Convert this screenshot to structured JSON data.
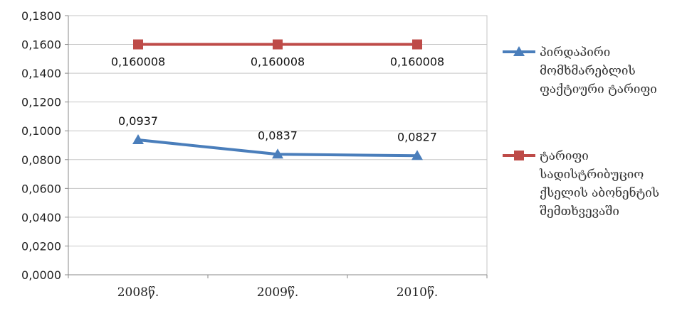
{
  "chart_data": {
    "type": "line",
    "categories": [
      "2008წ.",
      "2009წ.",
      "2010წ."
    ],
    "ylim": [
      0,
      0.18
    ],
    "y_ticks": [
      "0,0000",
      "0,0200",
      "0,0400",
      "0,0600",
      "0,0800",
      "0,1000",
      "0,1200",
      "0,1400",
      "0,1600",
      "0,1800"
    ],
    "grid": true,
    "legend_position": "right",
    "series": [
      {
        "name": "პირდაპირი მომხმარებლის ფაქტიური ტარიფი",
        "legend_lines": [
          "პირდაპირი",
          "მომხმარებლის",
          "ფაქტიური ტარიფი"
        ],
        "values": [
          0.0937,
          0.0837,
          0.0827
        ],
        "labels": [
          "0,0937",
          "0,0837",
          "0,0827"
        ],
        "color": "#4a7ebb",
        "marker": "triangle"
      },
      {
        "name": "ტარიფი სადისტრიბუციო ქსელის აბონენტის შემთხვევაში",
        "legend_lines": [
          "ტარიფი",
          "სადისტრიბუციო",
          "ქსელის აბონენტის",
          "შემთხვევაში"
        ],
        "values": [
          0.160008,
          0.160008,
          0.160008
        ],
        "labels": [
          "0,160008",
          "0,160008",
          "0,160008"
        ],
        "color": "#be4b48",
        "marker": "square"
      }
    ]
  }
}
